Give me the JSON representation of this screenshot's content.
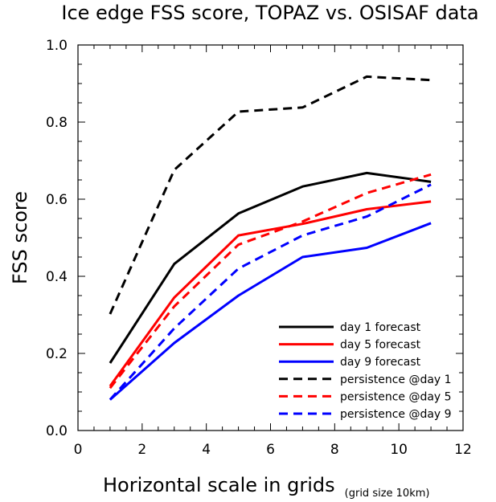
{
  "chart_data": {
    "type": "line",
    "title": "Ice edge FSS score, TOPAZ vs. OSISAF data",
    "xlabel": "Horizontal scale in grids",
    "xlabel_note": "(grid size 10km)",
    "ylabel": "FSS score",
    "xlim": [
      0,
      12
    ],
    "ylim": [
      0,
      1
    ],
    "xticks": [
      0,
      2,
      4,
      6,
      8,
      10,
      12
    ],
    "yticks": [
      0.0,
      0.2,
      0.4,
      0.6,
      0.8,
      1.0
    ],
    "xtick_labels": [
      "0",
      "2",
      "4",
      "6",
      "8",
      "10",
      "12"
    ],
    "ytick_labels": [
      "0.0",
      "0.2",
      "0.4",
      "0.6",
      "0.8",
      "1.0"
    ],
    "x": [
      1,
      3,
      5,
      7,
      9,
      11
    ],
    "grid": false,
    "legend_position": "bottom-right",
    "series": [
      {
        "name": "day 1 forecast",
        "color": "#000000",
        "dash": "solid",
        "values": [
          0.175,
          0.432,
          0.563,
          0.633,
          0.668,
          0.645
        ]
      },
      {
        "name": "day 5 forecast",
        "color": "#ff0000",
        "dash": "solid",
        "values": [
          0.115,
          0.345,
          0.506,
          0.536,
          0.574,
          0.594
        ]
      },
      {
        "name": "day 9 forecast",
        "color": "#0000ff",
        "dash": "solid",
        "values": [
          0.08,
          0.227,
          0.35,
          0.45,
          0.474,
          0.538
        ]
      },
      {
        "name": "persistence @day 1",
        "color": "#000000",
        "dash": "dashed",
        "values": [
          0.302,
          0.676,
          0.827,
          0.838,
          0.918,
          0.909
        ]
      },
      {
        "name": "persistence @day 5",
        "color": "#ff0000",
        "dash": "dashed",
        "values": [
          0.11,
          0.322,
          0.482,
          0.542,
          0.616,
          0.664
        ]
      },
      {
        "name": "persistence @day 9",
        "color": "#0000ff",
        "dash": "dashed",
        "values": [
          0.08,
          0.265,
          0.42,
          0.506,
          0.555,
          0.638
        ]
      }
    ]
  }
}
